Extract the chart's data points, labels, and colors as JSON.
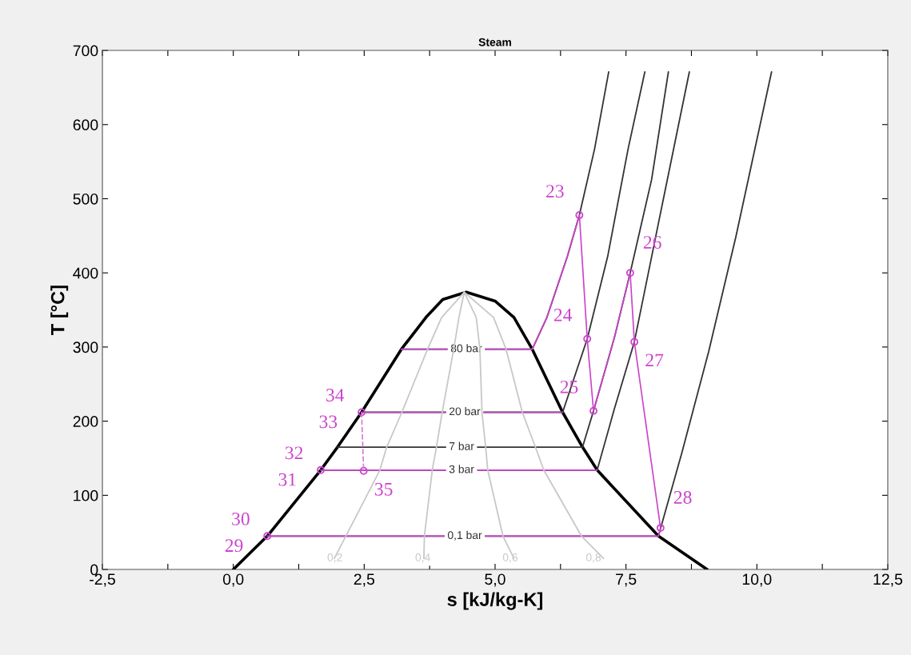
{
  "chart_data": {
    "type": "line",
    "title": "Steam",
    "xlabel": "s [kJ/kg-K]",
    "ylabel": "T [°C]",
    "xlim": [
      -2.5,
      12.5
    ],
    "ylim": [
      0,
      700
    ],
    "xticks": [
      {
        "value": -2.5,
        "label": "-2,5"
      },
      {
        "value": -1.25,
        "label": null
      },
      {
        "value": 0,
        "label": "0,0"
      },
      {
        "value": 1.25,
        "label": null
      },
      {
        "value": 2.5,
        "label": "2,5"
      },
      {
        "value": 3.75,
        "label": null
      },
      {
        "value": 5,
        "label": "5,0"
      },
      {
        "value": 6.25,
        "label": null
      },
      {
        "value": 7.5,
        "label": "7,5"
      },
      {
        "value": 8.75,
        "label": null
      },
      {
        "value": 10,
        "label": "10,0"
      },
      {
        "value": 11.25,
        "label": null
      },
      {
        "value": 12.5,
        "label": "12,5"
      }
    ],
    "yticks": [
      0,
      100,
      200,
      300,
      400,
      500,
      600,
      700
    ],
    "series": [
      {
        "type": "line",
        "color": "#000000",
        "x": [
          0,
          0.65,
          1.67,
          1.99,
          2.45,
          3.21,
          3.68,
          4.0,
          4.45,
          5.0,
          5.36,
          5.71,
          6.29,
          6.67,
          6.95,
          8.12,
          9.05
        ],
        "values": [
          0,
          45,
          134,
          165,
          212,
          297,
          340,
          364,
          374,
          362,
          340,
          297,
          212,
          165,
          134,
          45,
          0
        ]
      },
      {
        "type": "line",
        "color": "#c8c8c8",
        "x": [
          1.93,
          2.15,
          2.8,
          2.93,
          3.22,
          3.71,
          3.98,
          4.41
        ],
        "values": [
          15,
          45,
          134,
          165,
          212,
          297,
          340,
          374
        ]
      },
      {
        "type": "line",
        "color": "#c8c8c8",
        "x": [
          3.64,
          3.65,
          3.8,
          3.88,
          3.99,
          4.21,
          4.31,
          4.41
        ],
        "values": [
          15,
          45,
          134,
          165,
          212,
          297,
          340,
          374
        ]
      },
      {
        "type": "line",
        "color": "#c8c8c8",
        "x": [
          5.36,
          5.15,
          4.86,
          4.82,
          4.75,
          4.71,
          4.64,
          4.41
        ],
        "values": [
          15,
          45,
          134,
          165,
          212,
          297,
          340,
          374
        ]
      },
      {
        "type": "line",
        "color": "#c8c8c8",
        "x": [
          7.07,
          6.65,
          5.93,
          5.77,
          5.52,
          5.21,
          4.97,
          4.41
        ],
        "values": [
          15,
          45,
          134,
          165,
          212,
          297,
          340,
          374
        ]
      },
      {
        "type": "line",
        "color": "#333333",
        "x": [
          3.21,
          5.71,
          5.99,
          6.38,
          6.61,
          6.9,
          7.17
        ],
        "values": [
          297,
          297,
          340,
          422,
          478,
          567,
          671
        ]
      },
      {
        "type": "line",
        "color": "#333333",
        "x": [
          2.45,
          6.29,
          6.76,
          7.15,
          7.54,
          7.86
        ],
        "values": [
          212,
          212,
          311,
          422,
          567,
          671
        ]
      },
      {
        "type": "line",
        "color": "#333333",
        "x": [
          1.99,
          6.67,
          6.88,
          7.28,
          7.58,
          7.99,
          8.31
        ],
        "values": [
          165,
          165,
          214,
          313,
          400,
          526,
          671
        ]
      },
      {
        "type": "line",
        "color": "#333333",
        "x": [
          1.67,
          6.95,
          7.28,
          7.66,
          8.12,
          8.71
        ],
        "values": [
          134,
          134,
          217,
          307,
          467,
          671
        ]
      },
      {
        "type": "line",
        "color": "#333333",
        "x": [
          0.65,
          8.12,
          8.57,
          9.08,
          9.6,
          10.28
        ],
        "values": [
          45,
          45,
          158,
          294,
          449,
          671
        ]
      },
      {
        "type": "line",
        "color": "#cc44cc",
        "x": [
          3.21,
          5.71,
          5.99,
          6.38,
          6.61,
          6.76,
          6.88,
          7.28,
          7.58,
          7.66,
          8.16,
          8.12,
          0.65,
          null,
          6.29,
          2.45,
          null,
          6.95,
          1.67
        ],
        "values": [
          297,
          297,
          340,
          422,
          478,
          311,
          214,
          313,
          400,
          307,
          56,
          45,
          45,
          null,
          212,
          212,
          null,
          134,
          134
        ]
      },
      {
        "type": "line",
        "color": "#d77ad7",
        "line_style": "dashed",
        "x": [
          2.45,
          2.49
        ],
        "values": [
          212,
          133
        ]
      },
      {
        "type": "scatter",
        "color": "#cc44cc",
        "marker": "circle",
        "x": [
          6.61,
          6.76,
          6.88,
          7.58,
          7.66,
          8.16,
          0.65,
          1.67,
          2.45,
          2.49
        ],
        "values": [
          478,
          311,
          214,
          400,
          307,
          56,
          45,
          134,
          212,
          133
        ]
      }
    ],
    "annotations": [
      {
        "text": "80 bar",
        "x": 4.45,
        "y": 297
      },
      {
        "text": "20 bar",
        "x": 4.42,
        "y": 212
      },
      {
        "text": "7 bar",
        "x": 4.36,
        "y": 165
      },
      {
        "text": "3 bar",
        "x": 4.36,
        "y": 134
      },
      {
        "text": "0,1 bar",
        "x": 4.42,
        "y": 45
      },
      {
        "text": "0,2",
        "x": 1.94,
        "y": 15
      },
      {
        "text": "0,4",
        "x": 3.62,
        "y": 15
      },
      {
        "text": "0,6",
        "x": 5.29,
        "y": 15
      },
      {
        "text": "0,8",
        "x": 6.88,
        "y": 15
      },
      {
        "text": "23",
        "x": 6.61,
        "y": 478
      },
      {
        "text": "24",
        "x": 6.76,
        "y": 311
      },
      {
        "text": "25",
        "x": 6.88,
        "y": 214
      },
      {
        "text": "26",
        "x": 7.58,
        "y": 400
      },
      {
        "text": "27",
        "x": 7.66,
        "y": 307
      },
      {
        "text": "28",
        "x": 8.16,
        "y": 56
      },
      {
        "text": "29",
        "x": 0.65,
        "y": 45
      },
      {
        "text": "30",
        "x": 0.65,
        "y": 45
      },
      {
        "text": "31",
        "x": 1.67,
        "y": 134
      },
      {
        "text": "32",
        "x": 1.67,
        "y": 134
      },
      {
        "text": "33",
        "x": 2.45,
        "y": 212
      },
      {
        "text": "34",
        "x": 2.45,
        "y": 212
      },
      {
        "text": "35",
        "x": 2.49,
        "y": 133
      }
    ]
  }
}
